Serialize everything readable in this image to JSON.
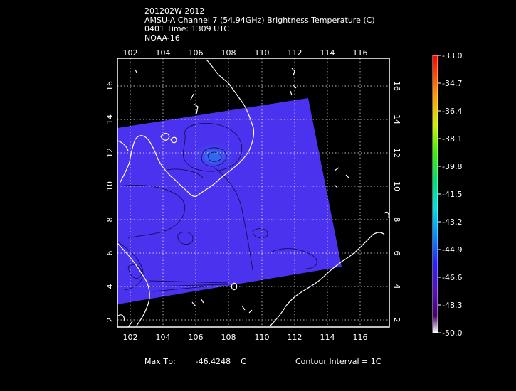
{
  "header": {
    "line1": "201202W 2012",
    "line2": "AMSU-A Channel 7 (54.94GHz) Brightness Temperature (C)",
    "line3": "0401 Time: 1309 UTC",
    "line4": "NOAA-16"
  },
  "axes": {
    "lon_ticks": [
      "102",
      "104",
      "106",
      "108",
      "110",
      "112",
      "114",
      "116"
    ],
    "lat_ticks": [
      "2",
      "4",
      "6",
      "8",
      "10",
      "12",
      "14",
      "16"
    ]
  },
  "colorbar": {
    "labels": [
      "-33.0",
      "-34.7",
      "-36.4",
      "-38.1",
      "-39.8",
      "-41.5",
      "-43.2",
      "-44.9",
      "-46.6",
      "-48.3",
      "-50.0"
    ]
  },
  "colors": {
    "background": "#000000",
    "swath": "#4a32ee",
    "swath_core": "#2e5cf0",
    "coastline": "#ffffff",
    "contour": "#14105a"
  },
  "footer": {
    "max_label": "Max Tb:",
    "max_value": "-46.4248",
    "max_unit": "C",
    "contour_label": "Contour Interval = 1C"
  }
}
